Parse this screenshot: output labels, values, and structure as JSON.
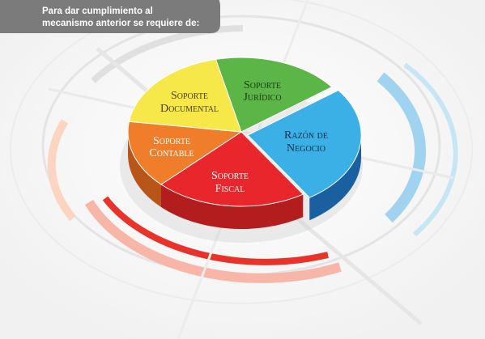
{
  "header": {
    "lines": [
      "Para dar cumplimiento al",
      "mecanismo anterior se requiere de:"
    ]
  },
  "segments": [
    {
      "lines": [
        "Soporte",
        "Jurídico"
      ]
    },
    {
      "lines": [
        "Razón de",
        "Negocio"
      ]
    },
    {
      "lines": [
        "Soporte",
        "Fiscal"
      ]
    },
    {
      "lines": [
        "Soporte",
        "Contable"
      ]
    },
    {
      "lines": [
        "Soporte",
        "Documental"
      ]
    }
  ]
}
